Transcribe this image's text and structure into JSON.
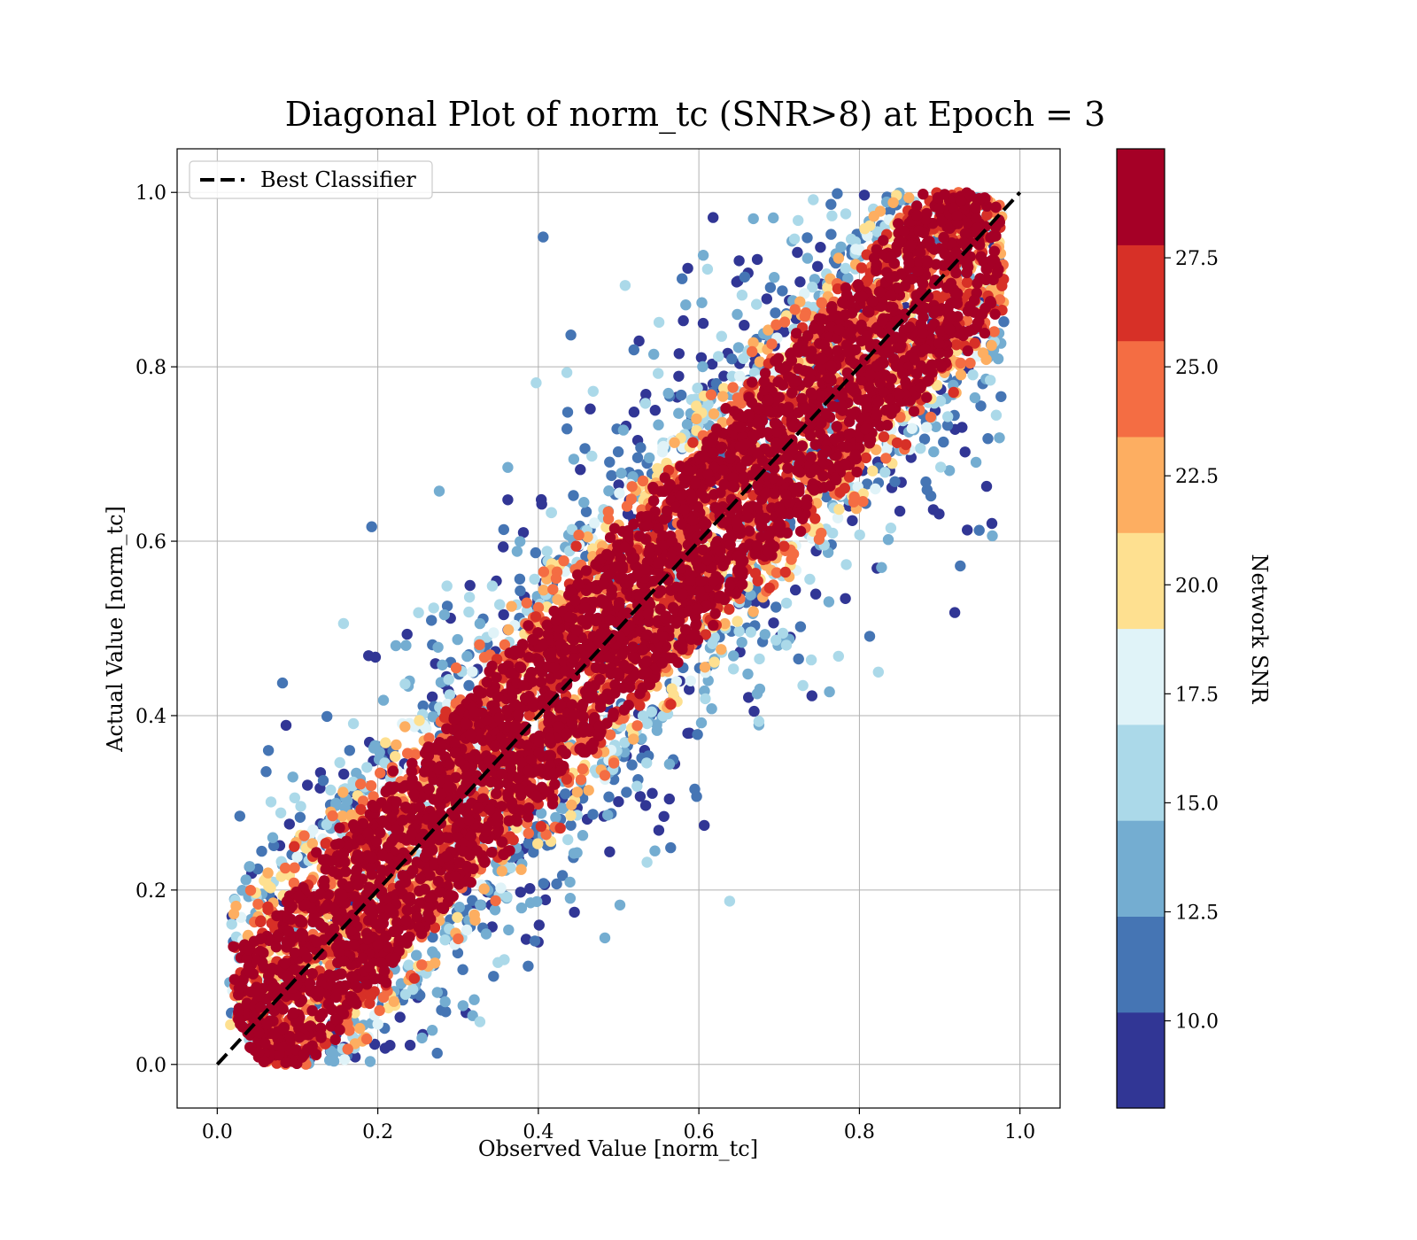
{
  "chart_data": {
    "type": "scatter",
    "title": "Diagonal Plot of norm_tc (SNR>8) at Epoch = 3",
    "xlabel": "Observed Value [norm_tc]",
    "ylabel": "Actual Value [norm_tc]",
    "xlim": [
      -0.05,
      1.05
    ],
    "ylim": [
      -0.05,
      1.05
    ],
    "x_ticks": [
      "0.0",
      "0.2",
      "0.4",
      "0.6",
      "0.8",
      "1.0"
    ],
    "y_ticks": [
      "0.0",
      "0.2",
      "0.4",
      "0.6",
      "0.8",
      "1.0"
    ],
    "grid": true,
    "legend": {
      "placement": "top-left",
      "entries": [
        {
          "label": "Best Classifier",
          "style": "dashed",
          "color": "#000000"
        }
      ]
    },
    "reference_line": {
      "name": "Best Classifier",
      "from": [
        0,
        0
      ],
      "to": [
        1,
        1
      ]
    },
    "colorbar": {
      "label": "Network SNR",
      "range": [
        8,
        30
      ],
      "tick_labels": [
        "10.0",
        "12.5",
        "15.0",
        "17.5",
        "20.0",
        "22.5",
        "25.0",
        "27.5"
      ],
      "tick_values": [
        10,
        12.5,
        15,
        17.5,
        20,
        22.5,
        25,
        27.5
      ],
      "colors": [
        "#313695",
        "#4575b4",
        "#74add1",
        "#abd9e9",
        "#e0f3f8",
        "#fee090",
        "#fdae61",
        "#f46d43",
        "#d73027",
        "#a50026"
      ]
    },
    "density": {
      "diagonal_core_halfwidth": 0.09,
      "scatter_halfwidth": 0.3,
      "snr_trend": "high SNR concentrated along the diagonal; low SNR scattered far from it"
    }
  }
}
